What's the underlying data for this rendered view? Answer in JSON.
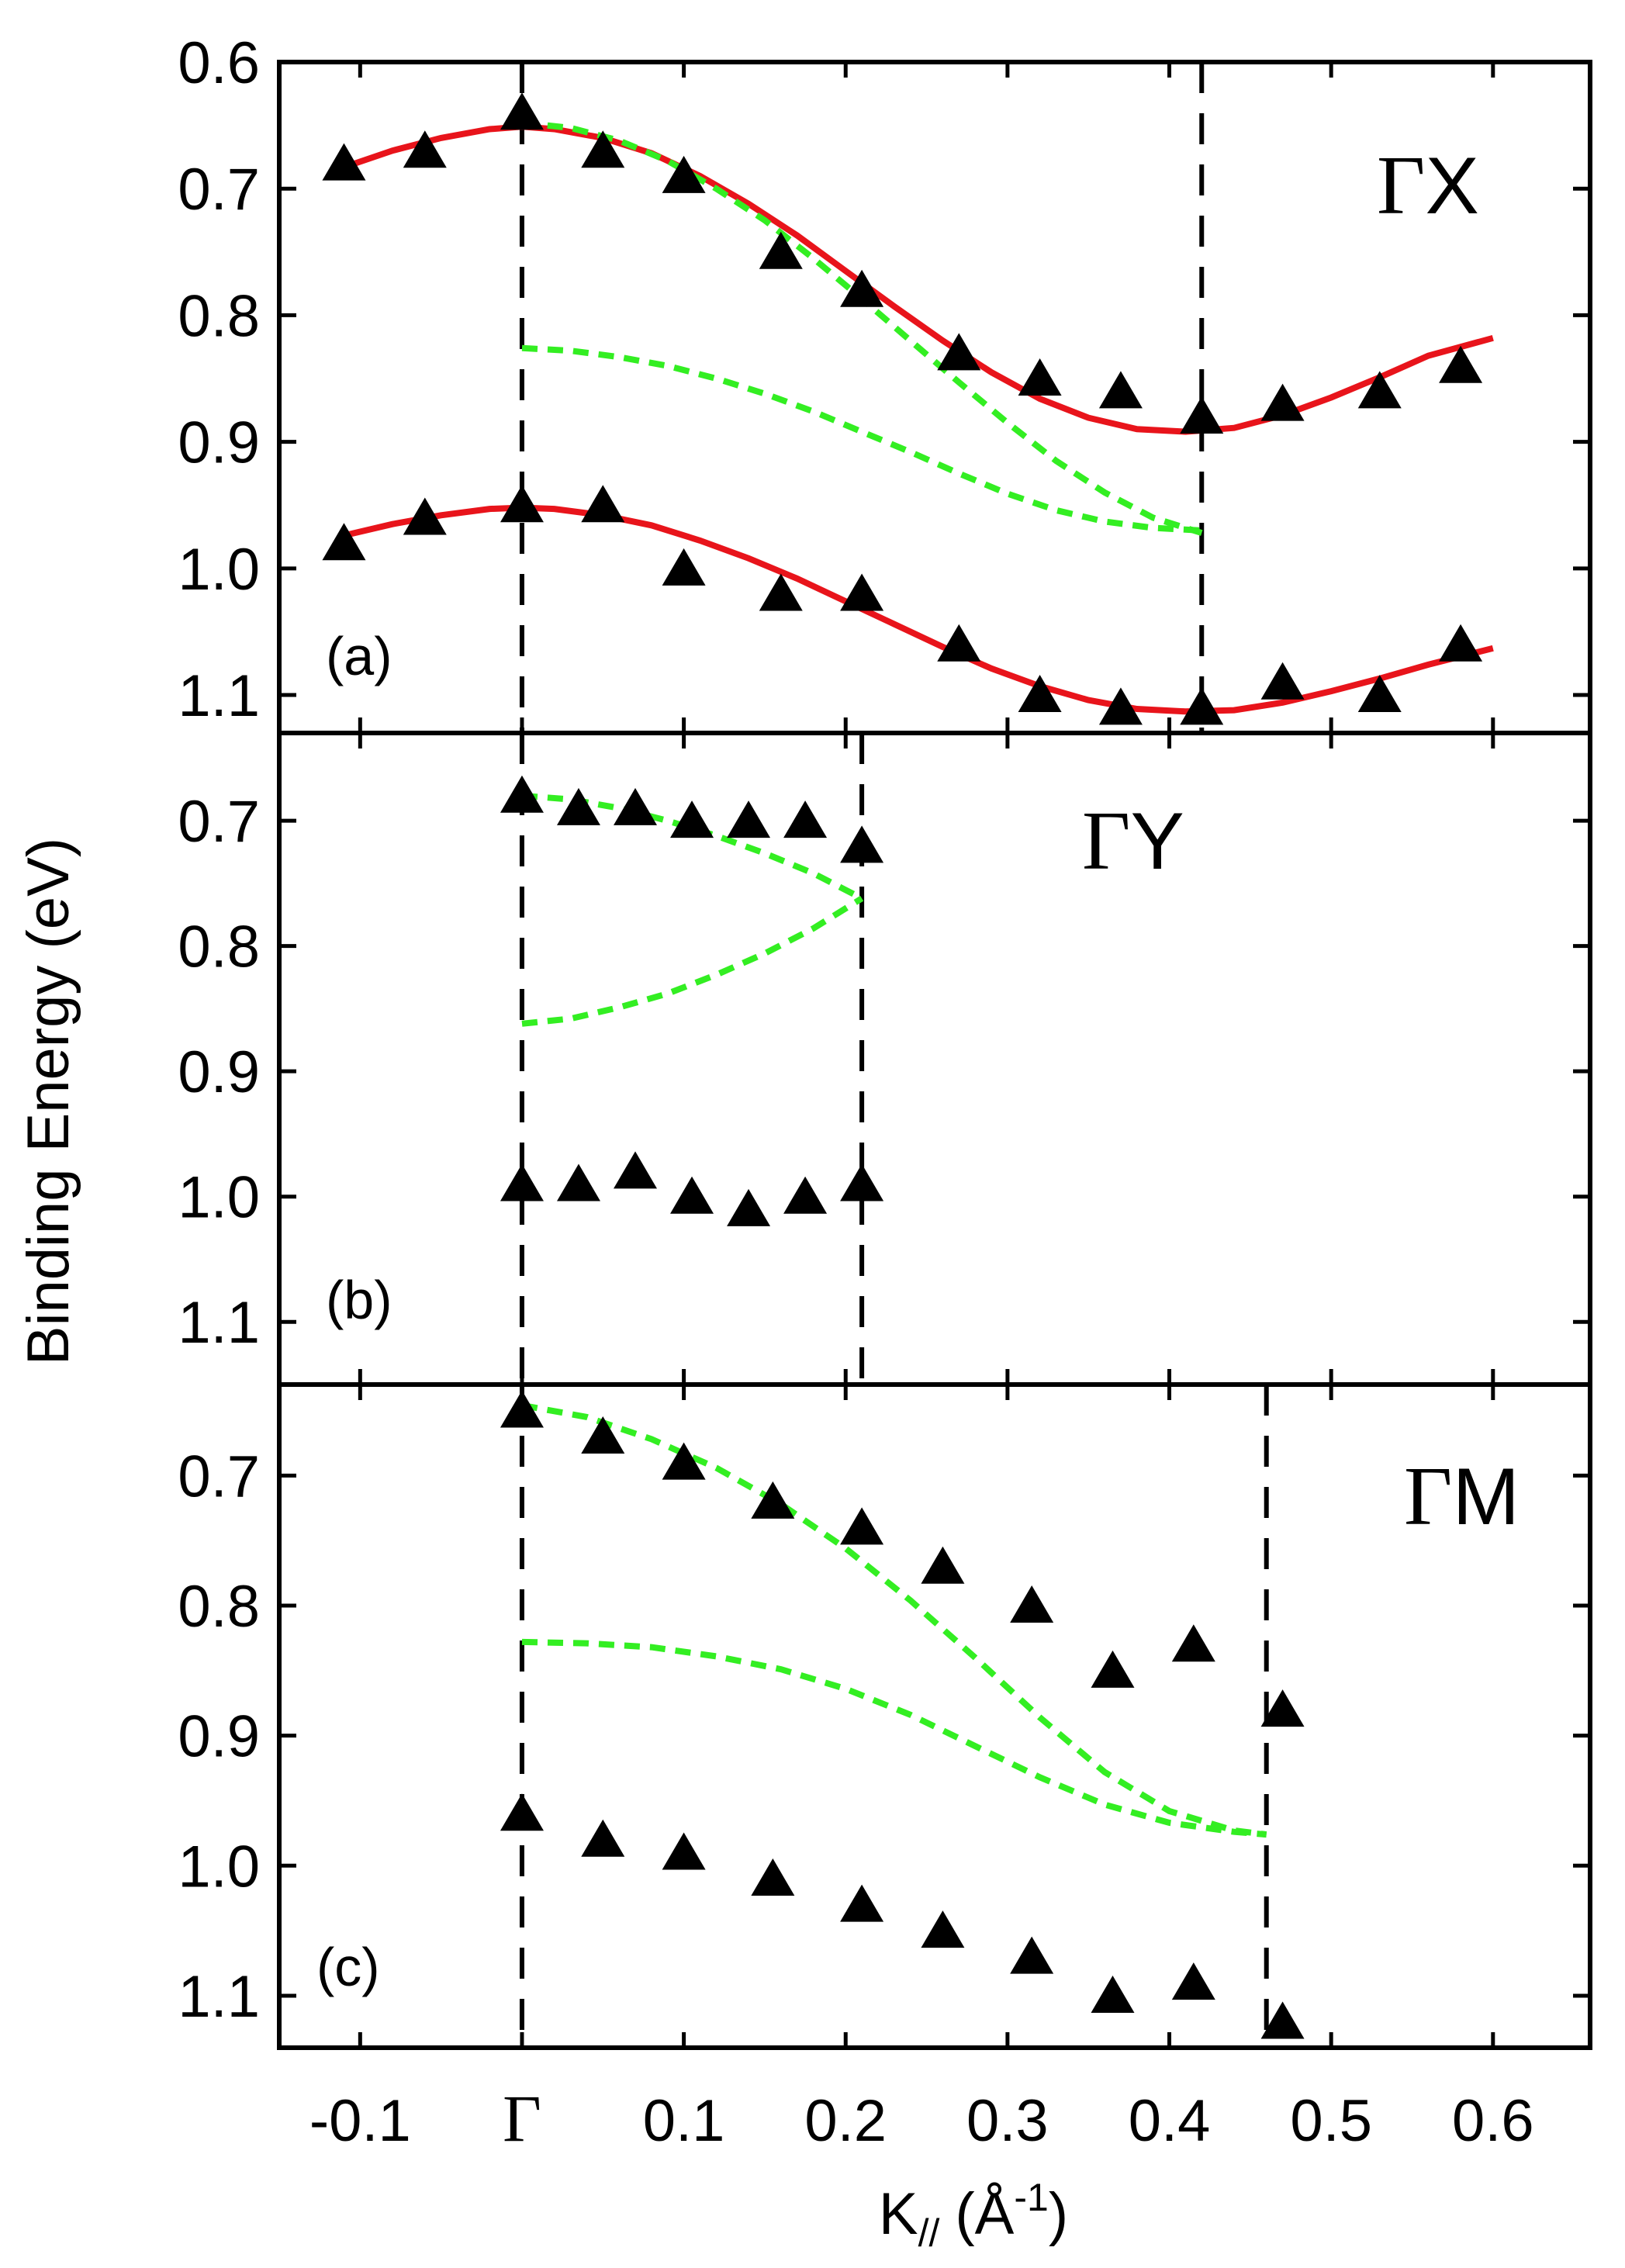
{
  "chart_data": {
    "type": "scatter",
    "xlabel": "K// (Å-1)",
    "xlabel_main": "K",
    "xlabel_sub": "//",
    "xlabel_unit_open": "(Å",
    "xlabel_unit_sup": "-1",
    "xlabel_unit_close": ")",
    "ylabel": "Binding Energy (eV)",
    "xlim": [
      -0.15,
      0.66
    ],
    "x_ticks": [
      {
        "value": -0.1,
        "label": "-0.1"
      },
      {
        "value": 0.0,
        "label": "Γ"
      },
      {
        "value": 0.1,
        "label": "0.1"
      },
      {
        "value": 0.2,
        "label": "0.2"
      },
      {
        "value": 0.3,
        "label": "0.3"
      },
      {
        "value": 0.4,
        "label": "0.4"
      },
      {
        "value": 0.5,
        "label": "0.5"
      },
      {
        "value": 0.6,
        "label": "0.6"
      }
    ],
    "panels": [
      {
        "id": "a",
        "panel_label": "(a)",
        "direction_label": "ΓX",
        "ylim": [
          0.6,
          1.13
        ],
        "y_ticks": [
          {
            "value": 0.6,
            "label": "0.6"
          },
          {
            "value": 0.7,
            "label": "0.7"
          },
          {
            "value": 0.8,
            "label": "0.8"
          },
          {
            "value": 0.9,
            "label": "0.9"
          },
          {
            "value": 1.0,
            "label": "1.0"
          },
          {
            "value": 1.1,
            "label": "1.1"
          }
        ],
        "vlines": [
          0.0,
          0.42
        ],
        "series": [
          {
            "name": "upper band (data)",
            "kind": "triangles",
            "x": [
              -0.11,
              -0.06,
              0.0,
              0.05,
              0.1,
              0.16,
              0.21,
              0.27,
              0.32,
              0.37,
              0.42,
              0.47,
              0.53,
              0.58
            ],
            "y": [
              0.68,
              0.67,
              0.64,
              0.67,
              0.69,
              0.75,
              0.78,
              0.83,
              0.85,
              0.86,
              0.88,
              0.87,
              0.86,
              0.84
            ]
          },
          {
            "name": "lower band (data)",
            "kind": "triangles",
            "x": [
              -0.11,
              -0.06,
              0.0,
              0.05,
              0.1,
              0.16,
              0.21,
              0.27,
              0.32,
              0.37,
              0.42,
              0.47,
              0.53,
              0.58
            ],
            "y": [
              0.98,
              0.96,
              0.95,
              0.95,
              1.0,
              1.02,
              1.02,
              1.06,
              1.1,
              1.11,
              1.11,
              1.09,
              1.1,
              1.06
            ]
          },
          {
            "name": "upper fit",
            "kind": "red-line",
            "x": [
              -0.11,
              -0.08,
              -0.05,
              -0.02,
              0.0,
              0.02,
              0.05,
              0.08,
              0.11,
              0.14,
              0.17,
              0.2,
              0.23,
              0.26,
              0.29,
              0.32,
              0.35,
              0.38,
              0.41,
              0.44,
              0.47,
              0.5,
              0.53,
              0.56,
              0.6
            ],
            "y": [
              0.683,
              0.67,
              0.66,
              0.653,
              0.651,
              0.653,
              0.66,
              0.672,
              0.69,
              0.712,
              0.737,
              0.765,
              0.793,
              0.82,
              0.845,
              0.866,
              0.881,
              0.89,
              0.892,
              0.889,
              0.879,
              0.865,
              0.849,
              0.832,
              0.818
            ]
          },
          {
            "name": "lower fit",
            "kind": "red-line",
            "x": [
              -0.11,
              -0.08,
              -0.05,
              -0.02,
              0.0,
              0.02,
              0.05,
              0.08,
              0.11,
              0.14,
              0.17,
              0.2,
              0.23,
              0.26,
              0.29,
              0.32,
              0.35,
              0.38,
              0.41,
              0.44,
              0.47,
              0.5,
              0.53,
              0.56,
              0.6
            ],
            "y": [
              0.974,
              0.965,
              0.958,
              0.953,
              0.952,
              0.953,
              0.958,
              0.966,
              0.978,
              0.992,
              1.008,
              1.026,
              1.044,
              1.062,
              1.079,
              1.093,
              1.104,
              1.111,
              1.113,
              1.112,
              1.106,
              1.097,
              1.087,
              1.076,
              1.063
            ]
          },
          {
            "name": "calc upper",
            "kind": "green-dashed",
            "x": [
              0.0,
              0.03,
              0.06,
              0.09,
              0.12,
              0.15,
              0.18,
              0.21,
              0.24,
              0.27,
              0.3,
              0.33,
              0.36,
              0.39,
              0.42
            ],
            "y": [
              0.648,
              0.652,
              0.662,
              0.678,
              0.7,
              0.725,
              0.755,
              0.787,
              0.82,
              0.853,
              0.885,
              0.915,
              0.94,
              0.96,
              0.972
            ]
          },
          {
            "name": "calc lower",
            "kind": "green-dashed",
            "x": [
              0.0,
              0.03,
              0.06,
              0.09,
              0.12,
              0.15,
              0.18,
              0.21,
              0.24,
              0.27,
              0.3,
              0.33,
              0.36,
              0.39,
              0.42
            ],
            "y": [
              0.826,
              0.828,
              0.833,
              0.84,
              0.85,
              0.862,
              0.876,
              0.892,
              0.908,
              0.925,
              0.941,
              0.954,
              0.963,
              0.968,
              0.97
            ]
          }
        ]
      },
      {
        "id": "b",
        "panel_label": "(b)",
        "direction_label": "ΓY",
        "ylim": [
          0.63,
          1.15
        ],
        "y_ticks": [
          {
            "value": 0.7,
            "label": "0.7"
          },
          {
            "value": 0.8,
            "label": "0.8"
          },
          {
            "value": 0.9,
            "label": "0.9"
          },
          {
            "value": 1.0,
            "label": "1.0"
          },
          {
            "value": 1.1,
            "label": "1.1"
          }
        ],
        "vlines": [
          0.0,
          0.21
        ],
        "series": [
          {
            "name": "upper band (data)",
            "kind": "triangles",
            "x": [
              0.0,
              0.035,
              0.07,
              0.105,
              0.14,
              0.175,
              0.21
            ],
            "y": [
              0.68,
              0.69,
              0.69,
              0.7,
              0.7,
              0.7,
              0.72
            ]
          },
          {
            "name": "lower band (data)",
            "kind": "triangles",
            "x": [
              0.0,
              0.035,
              0.07,
              0.105,
              0.14,
              0.175,
              0.21
            ],
            "y": [
              0.99,
              0.99,
              0.98,
              1.0,
              1.01,
              1.0,
              0.99
            ]
          },
          {
            "name": "calc upper",
            "kind": "green-dashed",
            "x": [
              0.0,
              0.03,
              0.06,
              0.09,
              0.12,
              0.15,
              0.18,
              0.21
            ],
            "y": [
              0.68,
              0.683,
              0.69,
              0.7,
              0.712,
              0.726,
              0.742,
              0.762
            ]
          },
          {
            "name": "calc lower",
            "kind": "green-dashed",
            "x": [
              0.0,
              0.03,
              0.06,
              0.09,
              0.12,
              0.15,
              0.18,
              0.21
            ],
            "y": [
              0.862,
              0.858,
              0.849,
              0.838,
              0.823,
              0.806,
              0.786,
              0.762
            ]
          }
        ]
      },
      {
        "id": "c",
        "panel_label": "(c)",
        "direction_label": "ΓM",
        "ylim": [
          0.63,
          1.14
        ],
        "y_ticks": [
          {
            "value": 0.7,
            "label": "0.7"
          },
          {
            "value": 0.8,
            "label": "0.8"
          },
          {
            "value": 0.9,
            "label": "0.9"
          },
          {
            "value": 1.0,
            "label": "1.0"
          },
          {
            "value": 1.1,
            "label": "1.1"
          }
        ],
        "vlines": [
          0.0,
          0.46
        ],
        "series": [
          {
            "name": "upper band (data)",
            "kind": "triangles",
            "x": [
              0.0,
              0.05,
              0.1,
              0.155,
              0.21,
              0.26,
              0.315,
              0.365,
              0.415,
              0.47
            ],
            "y": [
              0.65,
              0.67,
              0.69,
              0.72,
              0.74,
              0.77,
              0.8,
              0.85,
              0.83,
              0.88
            ]
          },
          {
            "name": "lower band (data)",
            "kind": "triangles",
            "x": [
              0.0,
              0.05,
              0.1,
              0.155,
              0.21,
              0.26,
              0.315,
              0.365,
              0.415,
              0.47
            ],
            "y": [
              0.96,
              0.98,
              0.99,
              1.01,
              1.03,
              1.05,
              1.07,
              1.1,
              1.09,
              1.12
            ]
          },
          {
            "name": "calc upper",
            "kind": "green-dashed",
            "x": [
              0.0,
              0.04,
              0.08,
              0.12,
              0.16,
              0.2,
              0.24,
              0.28,
              0.32,
              0.36,
              0.4,
              0.44,
              0.46
            ],
            "y": [
              0.646,
              0.655,
              0.672,
              0.694,
              0.722,
              0.756,
              0.796,
              0.84,
              0.886,
              0.928,
              0.958,
              0.973,
              0.976
            ]
          },
          {
            "name": "calc lower",
            "kind": "green-dashed",
            "x": [
              0.0,
              0.04,
              0.08,
              0.12,
              0.16,
              0.2,
              0.24,
              0.28,
              0.32,
              0.36,
              0.4,
              0.44,
              0.46
            ],
            "y": [
              0.828,
              0.829,
              0.832,
              0.839,
              0.849,
              0.864,
              0.884,
              0.908,
              0.932,
              0.953,
              0.967,
              0.974,
              0.976
            ]
          }
        ]
      }
    ]
  }
}
